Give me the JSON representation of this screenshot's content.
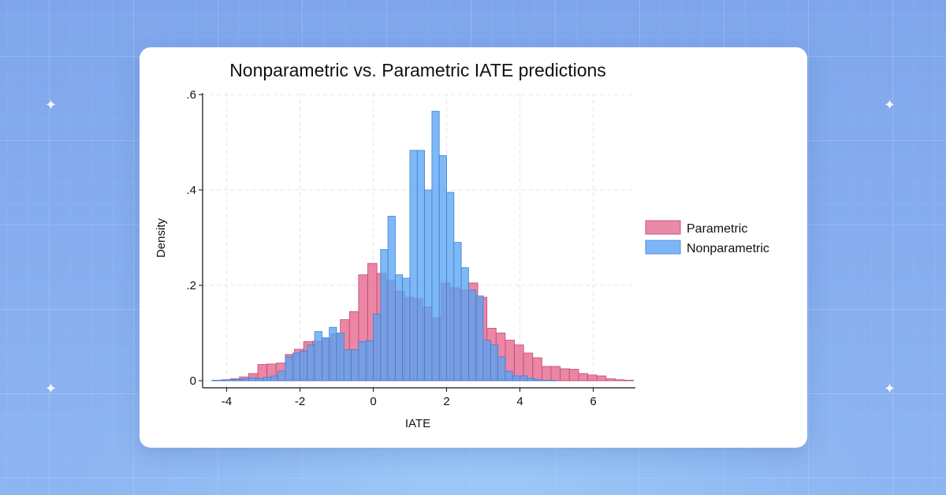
{
  "chart_data": {
    "type": "bar",
    "title": "Nonparametric vs. Parametric IATE predictions",
    "xlabel": "IATE",
    "ylabel": "Density",
    "xlim": [
      -4.5,
      7.2
    ],
    "ylim": [
      0,
      0.6
    ],
    "x_ticks": [
      -4,
      -2,
      0,
      2,
      4,
      6
    ],
    "x_tick_labels": [
      "-4",
      "-2",
      "0",
      "2",
      "4",
      "6"
    ],
    "y_ticks": [
      0,
      0.2,
      0.4,
      0.6
    ],
    "y_tick_labels": [
      "0",
      ".2",
      ".4",
      ".6"
    ],
    "grid": true,
    "legend_position": "right",
    "series": [
      {
        "name": "Parametric",
        "color": "#e66b91",
        "bin_start": -4.4,
        "bin_width": 0.25,
        "values": [
          0.001,
          0.002,
          0.004,
          0.008,
          0.015,
          0.034,
          0.035,
          0.037,
          0.055,
          0.066,
          0.082,
          0.083,
          0.088,
          0.098,
          0.128,
          0.145,
          0.222,
          0.246,
          0.225,
          0.21,
          0.188,
          0.175,
          0.172,
          0.155,
          0.132,
          0.205,
          0.195,
          0.19,
          0.205,
          0.175,
          0.11,
          0.1,
          0.085,
          0.075,
          0.058,
          0.048,
          0.03,
          0.03,
          0.025,
          0.024,
          0.015,
          0.012,
          0.01,
          0.004,
          0.002,
          0.001
        ]
      },
      {
        "name": "Nonparametric",
        "color": "#6aaef3",
        "bin_start": -4.4,
        "bin_width": 0.2,
        "values": [
          0.001,
          0.001,
          0.002,
          0.003,
          0.004,
          0.006,
          0.005,
          0.007,
          0.01,
          0.02,
          0.05,
          0.058,
          0.062,
          0.075,
          0.103,
          0.09,
          0.112,
          0.1,
          0.065,
          0.065,
          0.082,
          0.084,
          0.14,
          0.275,
          0.345,
          0.222,
          0.215,
          0.483,
          0.483,
          0.4,
          0.565,
          0.472,
          0.395,
          0.29,
          0.237,
          0.19,
          0.178,
          0.085,
          0.075,
          0.05,
          0.02,
          0.01,
          0.01,
          0.005,
          0.002,
          0.001,
          0.001
        ]
      }
    ]
  }
}
